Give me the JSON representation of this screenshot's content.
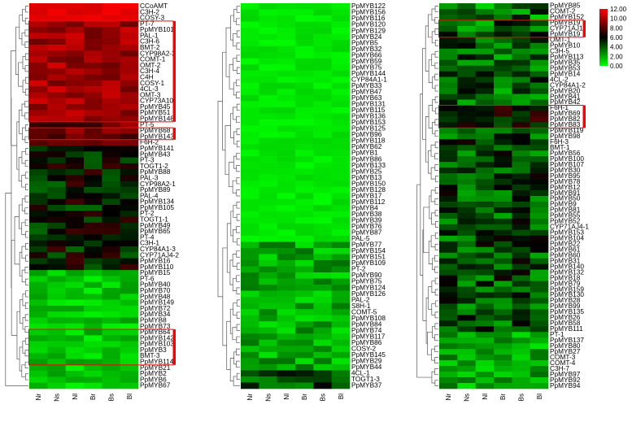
{
  "chart_data": [
    {
      "type": "heatmap",
      "columns": [
        "Nr",
        "Ns",
        "Nl",
        "Br",
        "Bs",
        "Bl"
      ],
      "rows": [
        "CCoAMT",
        "C3H-2",
        "COSY-3",
        "PT-7",
        "PpMYB101",
        "PAL-1",
        "C3H-6",
        "BMT-2",
        "CYP98A2-2",
        "COMT-1",
        "OMT-2",
        "C3H-4",
        "C4H",
        "COSY-1",
        "4CL-3",
        "OMT-3",
        "CYP73A10",
        "PpMYB45",
        "PpMYB51",
        "PpMYB148",
        "PT-5",
        "PpMYB68",
        "PpMYB143",
        "F6H-2",
        "PpMYB141",
        "PpMYB43",
        "PT-3",
        "TOGT1-2",
        "PpMYB88",
        "PAL-3",
        "CYP98A2-1",
        "PpMYB89",
        "PAL-4",
        "PpMYB134",
        "PpMYB105",
        "PT-2",
        "TOGT1-1",
        "PpMYB49",
        "PpMYB65",
        "PT-4",
        "C3H-1",
        "CYP84A1-3",
        "CYP71AJ4-2",
        "PpMYB16",
        "PpMYB110",
        "PpMYB15",
        "PT-6",
        "PpMYB40",
        "PpMYB70",
        "PpMYB48",
        "PpMYB149",
        "PpMYB72",
        "PpMYB34",
        "PpMYB8",
        "PpMYB73",
        "PpMYB64",
        "PpMYB142",
        "PpMYB103",
        "PpMYB3",
        "BMT-3",
        "PpMYB114",
        "PpMYB21",
        "PpMYB2",
        "PpMYB6",
        "PpMYB67"
      ],
      "highlight_groups": [
        [
          "PT-7",
          "PpMYB148"
        ],
        [
          "PpMYB68",
          "PpMYB143"
        ],
        [
          "PpMYB64",
          "PpMYB114"
        ]
      ]
    },
    {
      "type": "heatmap",
      "columns": [
        "Nr",
        "Ns",
        "Nl",
        "Br",
        "Bs",
        "Bl"
      ],
      "rows": [
        "PpMYB122",
        "PpMYB156",
        "PpMYB116",
        "PpMYB120",
        "PpMYB129",
        "PpMYB24",
        "PpMYB5",
        "PpMYB32",
        "PpMYB66",
        "PpMYB59",
        "PpMYB75",
        "PpMYB144",
        "CYP84A1-1",
        "PpMYB33",
        "PpMYB47",
        "PpMYB63",
        "PpMYB131",
        "PpMYB115",
        "PpMYB136",
        "PpMYB153",
        "PpMYB125",
        "PpMYB96",
        "PpMYB118",
        "PpMYB62",
        "PpMYB1",
        "PpMYB86",
        "PpMYB133",
        "PpMYB25",
        "PpMYB13",
        "PpMYB150",
        "PpMYB128",
        "PpMYB17",
        "PpMYB112",
        "PpMYB4",
        "PpMYB38",
        "PpMYB39",
        "PpMYB76",
        "PpMYB87",
        "PAL-5",
        "PpMYB77",
        "PpMYB154",
        "PpMYB151",
        "PpMYB109",
        "PT-2",
        "PpMYB90",
        "PpMYB75",
        "PpMYB124",
        "PpMYB126",
        "PAL-2",
        "S8H-1",
        "COMT-5",
        "PpMYB108",
        "PpMYB84",
        "PpMYB74",
        "PpMYB117",
        "PpMYB86",
        "COSY-2",
        "PpMYB145",
        "PpMYB29",
        "PpMYB44",
        "4CL-1",
        "TOGT1-3",
        "PpMYB37"
      ]
    },
    {
      "type": "heatmap",
      "columns": [
        "Nr",
        "Ns",
        "Nl",
        "Br",
        "Bs",
        "Bl"
      ],
      "rows": [
        "PpMYB85",
        "COMT-2",
        "PpMYB152",
        "PpMYB19",
        "CYP71AJ1",
        "PpMYB19",
        "OMT-1",
        "PpMYB10",
        "C3H-5",
        "PpMYB113",
        "PpMYB35",
        "PpMYB53",
        "PpMYB14",
        "4CL-2",
        "CYP84A1-2",
        "PpMYB20",
        "PpMYB41",
        "PpMYB42",
        "F6H-1",
        "PpMYB69",
        "PpMYB82",
        "PpMYB83",
        "PpMYB119",
        "PpMYB98",
        "F6H-3",
        "BMT-1",
        "PpMYB56",
        "PpMYB100",
        "PpMYB107",
        "PpMYB30",
        "PpMYB95",
        "PpMYB78",
        "PpMYB12",
        "PpMYB91",
        "PpMYB50",
        "PpMYB9",
        "PpMYB81",
        "PpMYB55",
        "PpMYB52",
        "CYP71AJ4-1",
        "PpMYB153",
        "PpMYB104",
        "PpMYB22",
        "PpMYB61",
        "PpMYB60",
        "PpMYB31",
        "PpMYB140",
        "PpMYB132",
        "PpMYB18",
        "PpMYB79",
        "PpMYB159",
        "PpMYB130",
        "PpMYB28",
        "PpMYB99",
        "PpMYB135",
        "PpMYB26",
        "PpMYB58",
        "PpMYB111",
        "PT-1",
        "PpMYB137",
        "PpMYB80",
        "PpMYB27",
        "COMT-3",
        "COMT-4",
        "C3H-7",
        "PpMYB97",
        "PpMYB92",
        "PpMYB94"
      ],
      "highlight_groups": [
        [
          "PpMYB19",
          "PpMYB19"
        ],
        [
          "F6H-1",
          "PpMYB83"
        ]
      ]
    }
  ],
  "colorscale": {
    "low": "#00ff00",
    "mid": "#000000",
    "high": "#ff0000",
    "ticks": [
      "12.00",
      "10.00",
      "8.00",
      "6.00",
      "4.00",
      "2.00",
      "0.00"
    ]
  },
  "highlight_color": "#e01010"
}
